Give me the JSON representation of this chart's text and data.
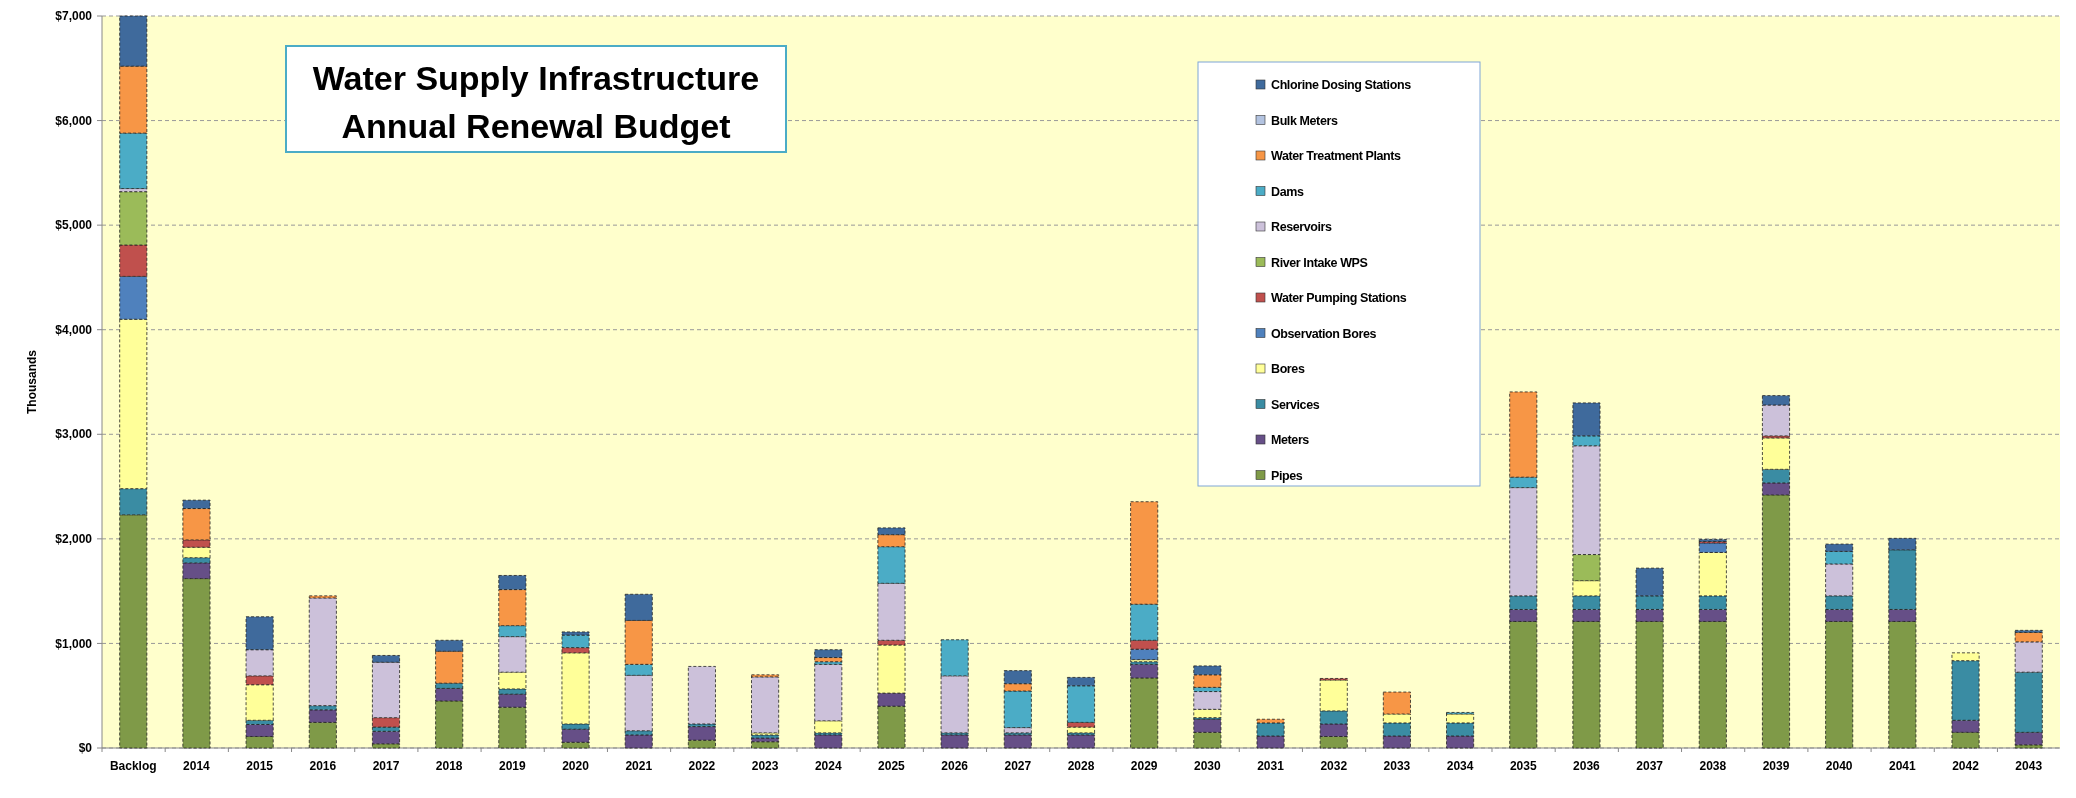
{
  "chart_data": {
    "type": "bar",
    "title": "Water Supply Infrastructure Annual Renewal Budget",
    "ylabel": "Thousands",
    "stacked": true,
    "grid": "y",
    "legend": "top right",
    "categories": [
      "Backlog",
      "2014",
      "2015",
      "2016",
      "2017",
      "2018",
      "2019",
      "2020",
      "2021",
      "2022",
      "2023",
      "2024",
      "2025",
      "2026",
      "2027",
      "2028",
      "2029",
      "2030",
      "2031",
      "2032",
      "2033",
      "2034",
      "2035",
      "2036",
      "2037",
      "2038",
      "2039",
      "2040",
      "2041",
      "2042",
      "2043"
    ],
    "ylim": [
      0,
      7000
    ],
    "yticks": [
      {
        "value": 0,
        "label": "$0"
      },
      {
        "value": 1000,
        "label": "$1,000"
      },
      {
        "value": 2000,
        "label": "$2,000"
      },
      {
        "value": 3000,
        "label": "$3,000"
      },
      {
        "value": 4000,
        "label": "$4,000"
      },
      {
        "value": 5000,
        "label": "$5,000"
      },
      {
        "value": 6000,
        "label": "$6,000"
      },
      {
        "value": 7000,
        "label": "$7,000"
      }
    ],
    "series": [
      {
        "name": "Pipes",
        "color": "#7f9a48",
        "values": [
          2230,
          1620,
          110,
          245,
          40,
          450,
          390,
          55,
          0,
          75,
          60,
          0,
          400,
          0,
          0,
          0,
          670,
          150,
          0,
          110,
          0,
          0,
          1210,
          1210,
          1210,
          1210,
          2420,
          1210,
          1210,
          150,
          30
        ]
      },
      {
        "name": "Meters",
        "color": "#664f87",
        "values": [
          0,
          150,
          115,
          120,
          120,
          120,
          125,
          125,
          125,
          130,
          35,
          125,
          125,
          125,
          125,
          125,
          130,
          125,
          115,
          120,
          115,
          115,
          115,
          115,
          115,
          115,
          115,
          115,
          115,
          115,
          120
        ]
      },
      {
        "name": "Services",
        "color": "#3a8ca3",
        "values": [
          250,
          50,
          40,
          40,
          40,
          50,
          50,
          50,
          40,
          25,
          30,
          20,
          0,
          20,
          20,
          20,
          25,
          15,
          125,
          125,
          125,
          125,
          130,
          130,
          130,
          130,
          130,
          130,
          570,
          570,
          575
        ]
      },
      {
        "name": "Bores",
        "color": "#ffff99",
        "values": [
          1620,
          100,
          340,
          0,
          0,
          0,
          160,
          680,
          0,
          0,
          20,
          115,
          460,
          0,
          0,
          55,
          20,
          80,
          0,
          295,
          85,
          85,
          0,
          145,
          0,
          415,
          300,
          0,
          null,
          75,
          0
        ]
      },
      {
        "name": "Observation Bores",
        "color": "#4f81bd",
        "values": [
          410,
          0,
          0,
          0,
          0,
          0,
          0,
          0,
          0,
          0,
          0,
          0,
          0,
          0,
          0,
          0,
          100,
          0,
          0,
          0,
          0,
          0,
          0,
          0,
          0,
          90,
          0,
          0,
          0,
          0,
          0
        ]
      },
      {
        "name": "Water Pumping Stations",
        "color": "#c0504d",
        "values": [
          300,
          70,
          85,
          0,
          90,
          0,
          0,
          50,
          0,
          0,
          0,
          0,
          45,
          0,
          0,
          45,
          85,
          0,
          0,
          15,
          0,
          0,
          0,
          0,
          0,
          15,
          20,
          0,
          0,
          0,
          0
        ]
      },
      {
        "name": "River Intake WPS",
        "color": "#9bbb59",
        "values": [
          510,
          0,
          0,
          0,
          0,
          0,
          0,
          0,
          0,
          0,
          0,
          0,
          0,
          0,
          0,
          0,
          0,
          0,
          0,
          0,
          0,
          0,
          0,
          250,
          0,
          0,
          0,
          0,
          0,
          0,
          0
        ]
      },
      {
        "name": "Reservoirs",
        "color": "#ccc1da",
        "values": [
          30,
          0,
          250,
          1030,
          530,
          0,
          340,
          0,
          530,
          550,
          535,
          540,
          545,
          545,
          50,
          0,
          0,
          170,
          0,
          0,
          0,
          0,
          1035,
          1040,
          0,
          0,
          295,
          305,
          0,
          0,
          290
        ]
      },
      {
        "name": "Dams",
        "color": "#4bacc6",
        "values": [
          530,
          0,
          0,
          0,
          0,
          0,
          105,
          120,
          105,
          0,
          0,
          25,
          350,
          345,
          350,
          350,
          345,
          40,
          0,
          0,
          0,
          15,
          100,
          95,
          0,
          0,
          0,
          120,
          0,
          0,
          0
        ]
      },
      {
        "name": "Water Treatment Plants",
        "color": "#f79646",
        "values": [
          640,
          300,
          0,
          20,
          0,
          305,
          345,
          0,
          420,
          0,
          20,
          40,
          115,
          0,
          70,
          0,
          980,
          120,
          35,
          0,
          210,
          0,
          815,
          0,
          0,
          0,
          0,
          0,
          0,
          0,
          90
        ]
      },
      {
        "name": "Bulk Meters",
        "color": "#b3c3e0",
        "values": [
          0,
          0,
          0,
          0,
          0,
          0,
          0,
          0,
          0,
          0,
          0,
          0,
          0,
          0,
          0,
          0,
          0,
          0,
          0,
          0,
          0,
          0,
          0,
          0,
          0,
          0,
          0,
          0,
          0,
          0,
          0
        ]
      },
      {
        "name": "Chlorine Dosing Stations",
        "color": "#3f6a9c",
        "values": [
          480,
          80,
          315,
          0,
          65,
          105,
          135,
          30,
          250,
          0,
          0,
          75,
          65,
          0,
          125,
          80,
          0,
          85,
          0,
          0,
          0,
          0,
          0,
          315,
          265,
          20,
          90,
          70,
          110,
          0,
          20
        ]
      }
    ]
  }
}
